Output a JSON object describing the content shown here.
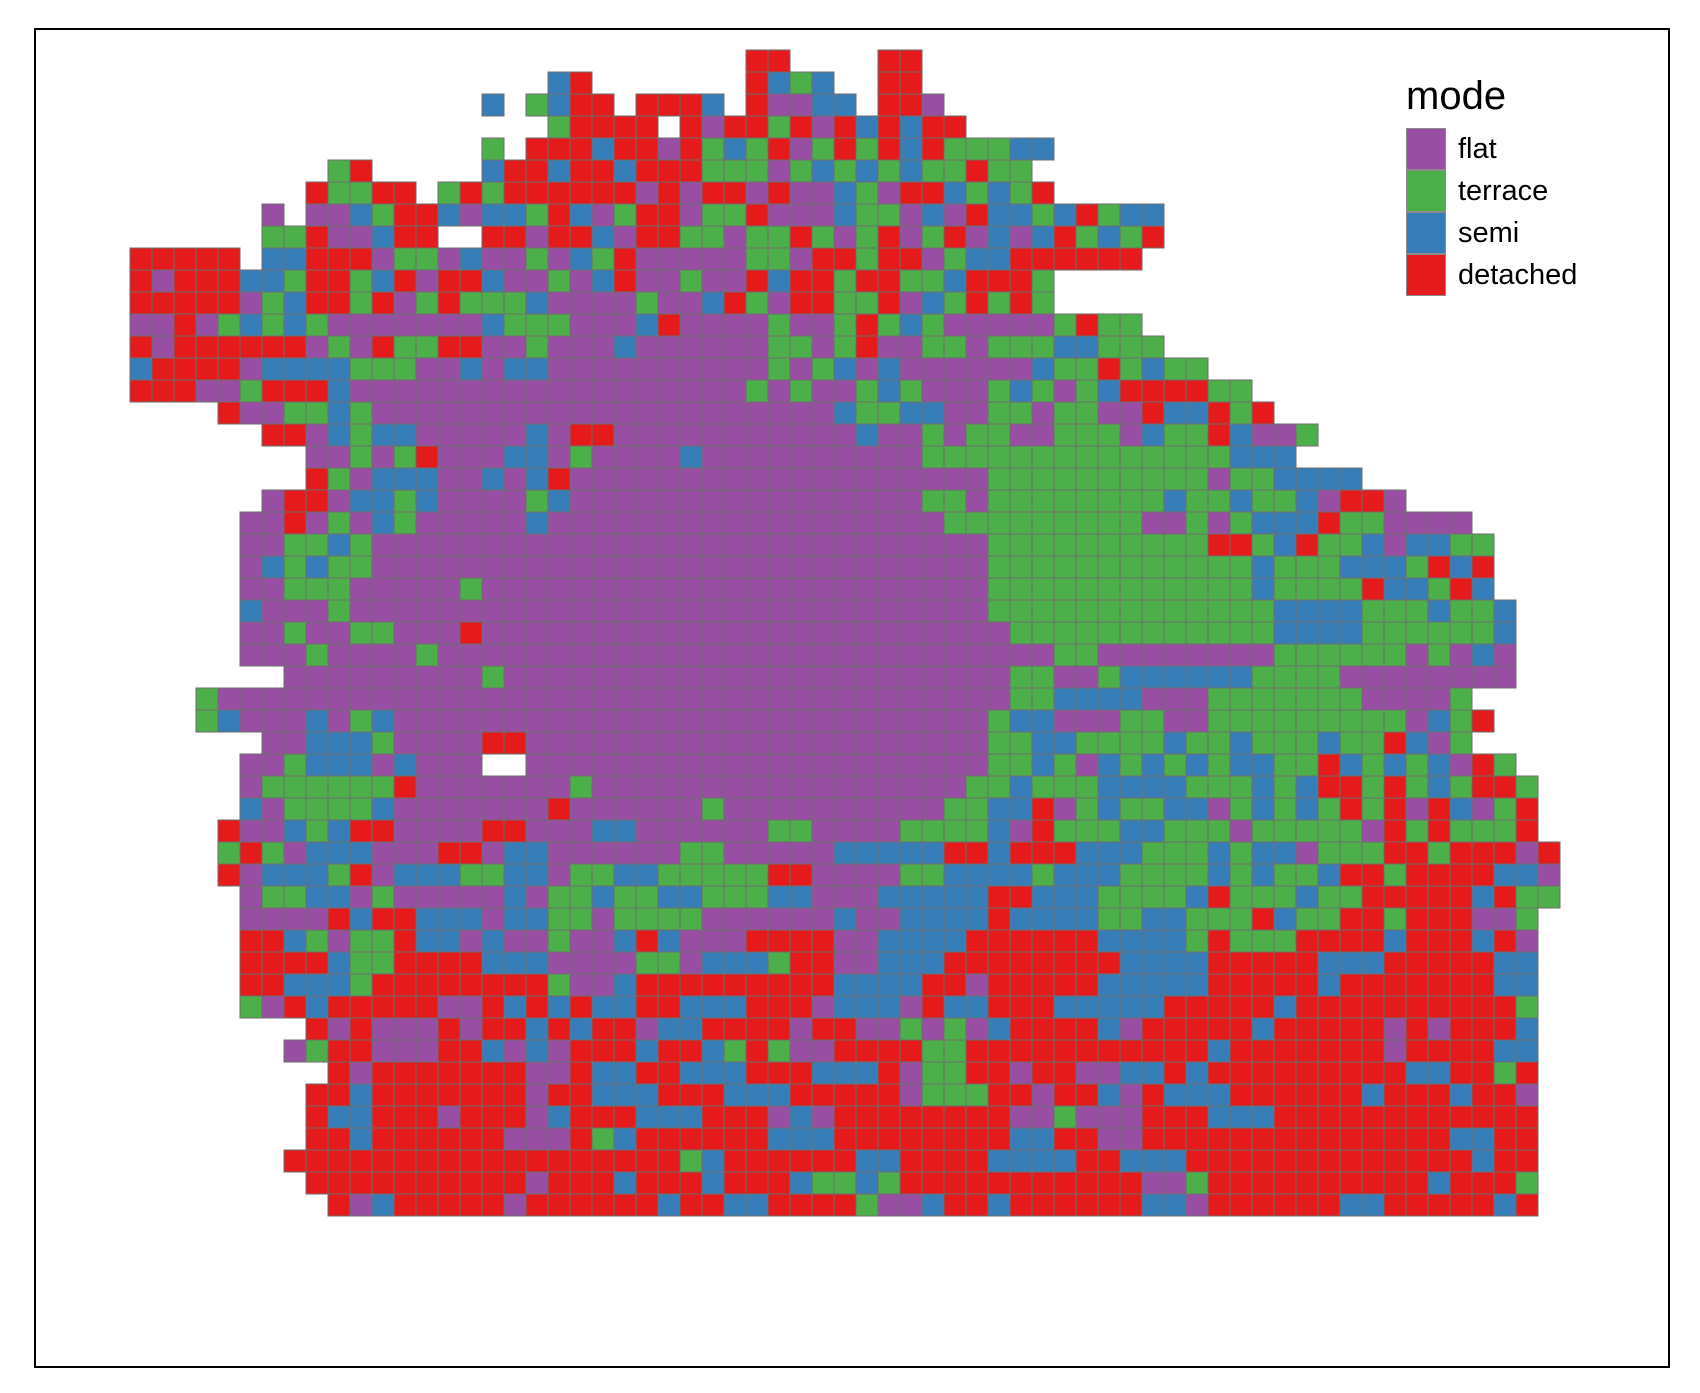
{
  "legend": {
    "title": "mode",
    "items": [
      {
        "key": "F",
        "label": "flat",
        "color": "#984ea3"
      },
      {
        "key": "T",
        "label": "terrace",
        "color": "#4daf4a"
      },
      {
        "key": "S",
        "label": "semi",
        "color": "#377eb8"
      },
      {
        "key": "D",
        "label": "detached",
        "color": "#e41a1c"
      }
    ]
  },
  "map_data": {
    "type": "grid-map",
    "cell_outline_color": "#6e6e6e",
    "grid_codes": "F=flat, T=terrace, S=semi, D=detached, .=no data",
    "rows": [
      "...............................DD....DD.............",
      "......................SD.......DSTS..DD.............",
      "...................S.TSDD.DDDS.DFFSS.DDF............",
      "......................TDDDD.DFDDTDFDSDSDD...........",
      "...................T.DDDSDDFDTSTDFTDTDSDTTTSS.......",
      "............TD.....SDDSDDSDDDTTTFTSTSTSTTDTT........",
      "...........DTTDD.TDTDDDDDDFDFDDFDFFSTFDDSTSTD.......",
      ".........F.FFSTDDSFSSTDSFTDDFTTDFFFSTTFSFDSSTSDTSS...",
      ".........TTDFFSDD..DDFDDSFDDTTFTTDTFTDFTDFSFSDTSTD...",
      "...DDDDD.SSDDDFTTFSFFTFSTDFFFFFTTFDDTDDFTSSDDDDDD....",
      "...DFDDDSSTDDTSDFDDSFFTFSDFFTFFDSDDTDDTTSDDDT........",
      "...DDDDDFTSDDTDFTDTTTSFFFFTFFSDTFDDTTDFSTDTDT........",
      "...FFDFTSTSTFFFFFFFSTTTFFFSDFFFFTFFTDTSTFFFFFTDTT....",
      "...DFDDDDDDFTFDTTDDFFTFFFSFFFFFFTTFTDFFTTFTTTSSTTT...",
      "...SDDDDFSSSSTTTFFSFSSFFFFFFFFFFTFTSFSFFFFFFSTTDTSTT.",
      "...DDDFFTDDDSFFFFFFFFFFFFFFFFFFTFTFFTSTFFFTSTFTSDDDDTT",
      ".......DFFTTSTFFFFFFFFFFFFFFFFFFFFFSTTSSFFTTFTTFFDSSDTD",
      ".........DDFSTSSFFFFFSFDDFFFFFFFFFFFSFFTFTTFFTTTFSTTDSFFT",
      "...........FFTFTDFFFSSFTFFFFSFFFFFFFFFFTTTTTTTTTTTTTTSSS",
      "...........DTFSSSFFSFSDFFFFFFFFFFFFFFFFFFFTTTTTTTTTTFTTSSSS",
      ".........FDDFSSTSFFFFTSFFFFFFFFFFFFFFFFTTFTTTTTTTTSTTSTTSFDDF..",
      "........FFDFTFSTFFFFFSFFFFFFFFFFFFFFFFFFTTTTTTTTTFFTFTSSSDTTFFFF",
      "........FFTTSTFFFFFFFFFFFFFFFFFFFFFFFFFFFFTTTTTTTTTTDDTSDTTSFSSTT",
      "........FSTSTTFFFFFFFFFFFFFFFFFFFFFFFFFFFFTTTTTTTTTTTTSTTTSSSTDSD",
      "........FFTTTFFFFFTFFFFFFFFFFFFFFFFFFFFFFFTTTTTTTTTTTTSTTTTDSSTDS",
      "........SFFFTFFFFFFFFFFFFFFFFFFFFFFFFFFFFFTTTTTTTTTTTTTSSSSTTTSTTS",
      "........FFTFFTTFFFDFFFFFFFFFFFFFFFFFFFFFFFFTTTTTTTTTTTTSSSSTTTTTTS",
      "........FFFTFFFFTFFFFFFFFFFFFFFFFFFFFFFFFFFFFTTFFFFFFFFTTTTTTFTFSF",
      "..........FFFFFFFFFTFFFFFFFFFFFFFFFFFFFFFFFTTFFTSSSSSSTTTTFFFFFFFF",
      "......TFFFFFFFFFFFFFFFFFFFFFFFFFFFFFFFFFFFFTTSSSSFFFTTTTTTTFFFFT",
      "......TSFFFSFTSFFFFFFFFFFFFFFFFFFFFFFFFFFFTSSFFFTTFFTTTTTTTTTFSTD",
      ".........FFSSSTFFFFDDFFFFFFFFFFFFFFFFFFFFFTTSSTTTTSTTSTTTSTTDSFT",
      "........FFTSSSFSFFF..FFFFFFFFFFFFFFFFFFFFFTTSTFSTSTSTSSTTDSTSTSFDT",
      "........FTTTTTTDFFFFFFFTFFFFFFFFFFFFFFFFFTTSTTTSSSSTTTSTSDDTDTSTDDT",
      "........SFTTTTSFFFFFFFDFFFFFFTFFFFFFFFFFTTSSDFTSTTSSFTSTSTDTDFDSFTD",
      ".......DFFSTSDDFFFFDDFFFSSFFFFFFTTFFFFTTTTSFDTTTSSTTTFTTTTTFDTDTTTD",
      ".......TDTFSSSFFFDDFSSFFFFFFTTFFFFFSSSSSDDSDDDSSSTTTSTSSFTTTDDTDDDFD",
      ".......DFSSSTDFSSSTTSSFTTSSTTTTTDDFFFFTTSSSSTSSSTTTTSTSTTSDDTDDDDSSF",
      "........FTTSSFTFFFFFSFTTSTTSSTTTSSFFFSSSSSDDSSSTTTTSDTTTSTTDDDDDSDTT",
      "........FFFFDSDDSSSFSSTTFTTTTFFFFFFSFFSSSSDSSSSTTSSTTTDSTTDDTDDDFFT",
      "........DDSTFTTDSSFSFFTFFSDSFFFDDDDFFSSSSDDDDDDSSSSTDTTTDDDDSDDDSDF",
      "........DDDDSTTDDDDSSSFFFFTTFSSSTDDFFSSSDDDDDDDDSSSSDDDDDSSSDDDDDSS",
      "........DDSSSTDDDDDDDDTFFSDDDDDDDDDSSSSDDFDDDDDSSSSSDDDDDSDDDDDDDSS",
      "........TFDSDDDDDFFDSDSDSSDDSSSDDDFSSSFDSSDDDSSSSSDDDDDSDDDDDDDDDDT",
      "...........DFDFFFDFDDSDSDDFSSDDDDFDDFFTFTFSDDDDSFDDDDDSDDDDDFDFDDDS",
      "..........FTDDFFFDDSFSFDDDSDDSTDTFFDDDDTTDDDDDDDDDDDSDDDDDDDFDDDDSS",
      "............DFDDDDDDDFFDSSDDSSSDDDSSSDFTTDDFDDFFSSDSDDDDDDDDDSSDDTD",
      "...........DDSDDDDDDDFDDSSSDDDSSSDDDDDFTTTDDFDDSFDSSSDDDDDDSDDDSDDF",
      "...........DSSDDDFDDDFSDDDSSSDDDFSFDDDDDDDDFFTFFFDDDSSSDDDDDDDDDDDD",
      "...........DDSDDDDDDFFFDTSDDDDDDSSSDDDDDDDDSSDDFFDDDDDDDDDDDDDDSSDD",
      "..........DDDDDDDDDDDDDDDDDDTSDDDDDDSSDDDDSSSSDDSSSDDDDDDDDDDDDDSDD",
      "...........DDDDDDDDDDFDDDSDDDSDDDSTTSTDDDDDDDDDDDFFTDDDDDDDDDDSDDDT",
      "............DFSDDDDDFDDDDDDSDDSSDDDDTFFSDDSDDDDDDSSFDDDDDDSSDDDDDSD"
    ]
  }
}
